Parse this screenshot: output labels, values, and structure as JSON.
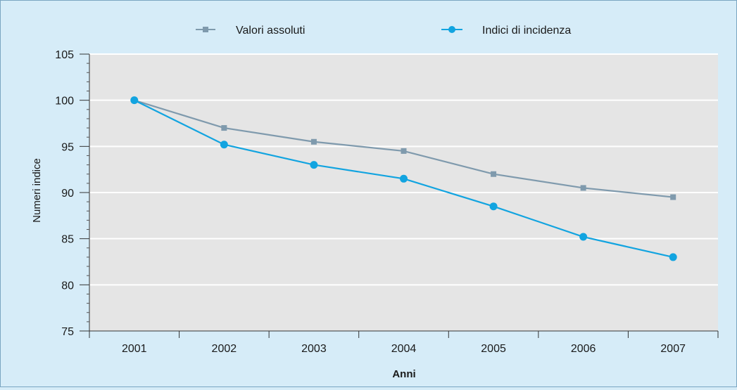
{
  "chart_data": {
    "type": "line",
    "title": "",
    "xlabel": "Anni",
    "ylabel": "Numeri indice",
    "categories": [
      "2001",
      "2002",
      "2003",
      "2004",
      "2005",
      "2006",
      "2007"
    ],
    "ylim": [
      75,
      105
    ],
    "yticks": [
      "75",
      "80",
      "85",
      "90",
      "95",
      "100",
      "105"
    ],
    "grid": true,
    "legend_position": "top",
    "series": [
      {
        "name": "Valori assoluti",
        "marker": "square",
        "color": "#7f9aad",
        "values": [
          100,
          97,
          95.5,
          94.5,
          92,
          90.5,
          89.5
        ]
      },
      {
        "name": "Indici di incidenza",
        "marker": "circle",
        "color": "#12a4e0",
        "values": [
          100,
          95.2,
          93,
          91.5,
          88.5,
          85.2,
          83
        ]
      }
    ],
    "colors": {
      "background": "#d6ecf8",
      "plot_area": "#e5e5e5",
      "gridline": "#ffffff"
    }
  }
}
